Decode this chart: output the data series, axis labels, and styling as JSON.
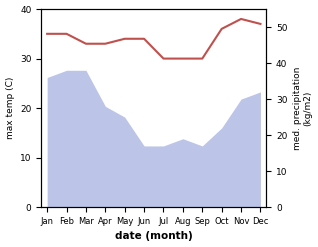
{
  "months": [
    "Jan",
    "Feb",
    "Mar",
    "Apr",
    "May",
    "Jun",
    "Jul",
    "Aug",
    "Sep",
    "Oct",
    "Nov",
    "Dec"
  ],
  "month_indices": [
    0,
    1,
    2,
    3,
    4,
    5,
    6,
    7,
    8,
    9,
    10,
    11
  ],
  "max_temp": [
    35,
    35,
    33,
    33,
    34,
    34,
    30,
    30,
    30,
    36,
    38,
    37
  ],
  "precipitation": [
    36,
    38,
    38,
    28,
    25,
    17,
    17,
    19,
    17,
    22,
    30,
    32
  ],
  "temp_color": "#c0504d",
  "precip_fill_color": "#bcc5e8",
  "xlabel": "date (month)",
  "ylabel_left": "max temp (C)",
  "ylabel_right": "med. precipitation\n(kg/m2)",
  "ylim_left": [
    0,
    40
  ],
  "ylim_right": [
    0,
    55
  ],
  "yticks_left": [
    0,
    10,
    20,
    30,
    40
  ],
  "yticks_right": [
    0,
    10,
    20,
    30,
    40,
    50
  ],
  "background_color": "#ffffff"
}
